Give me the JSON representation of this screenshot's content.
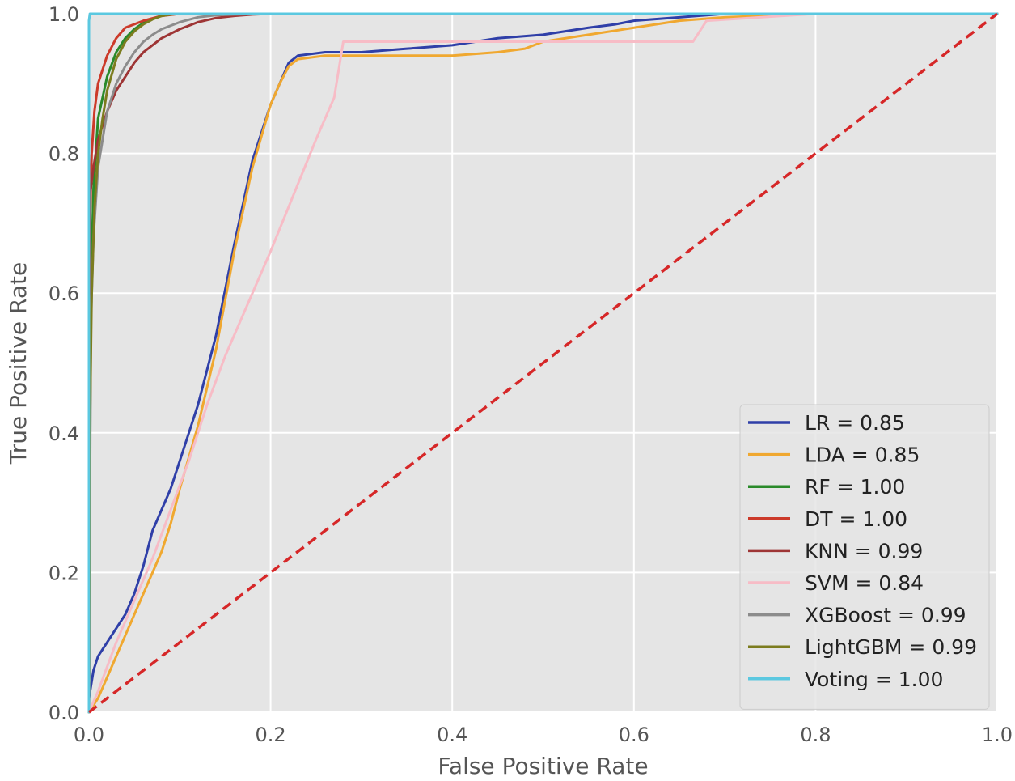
{
  "chart_data": {
    "type": "line",
    "title": "",
    "xlabel": "False Positive Rate",
    "ylabel": "True Positive Rate",
    "xlim": [
      0.0,
      1.0
    ],
    "ylim": [
      0.0,
      1.0
    ],
    "xticks": [
      0.0,
      0.2,
      0.4,
      0.6,
      0.8,
      1.0
    ],
    "yticks": [
      0.0,
      0.2,
      0.4,
      0.6,
      0.8,
      1.0
    ],
    "xtick_labels": [
      "0.0",
      "0.2",
      "0.4",
      "0.6",
      "0.8",
      "1.0"
    ],
    "ytick_labels": [
      "0.0",
      "0.2",
      "0.4",
      "0.6",
      "0.8",
      "1.0"
    ],
    "grid": true,
    "legend_position": "bottom-right",
    "colors": {
      "background": "#e5e5e5",
      "grid": "#ffffff",
      "diagonal": "#d62728"
    },
    "series": [
      {
        "name": "LR",
        "legend_label": "LR = 0.85",
        "auc": 0.85,
        "color": "#2f3fa8",
        "x": [
          0.0,
          0.005,
          0.01,
          0.02,
          0.03,
          0.04,
          0.05,
          0.06,
          0.07,
          0.08,
          0.09,
          0.1,
          0.12,
          0.14,
          0.16,
          0.18,
          0.2,
          0.21,
          0.22,
          0.23,
          0.26,
          0.3,
          0.35,
          0.4,
          0.45,
          0.5,
          0.55,
          0.58,
          0.6,
          0.65,
          0.7,
          0.8,
          0.9,
          1.0
        ],
        "y": [
          0.02,
          0.06,
          0.08,
          0.1,
          0.12,
          0.14,
          0.17,
          0.21,
          0.26,
          0.29,
          0.32,
          0.36,
          0.44,
          0.54,
          0.67,
          0.79,
          0.87,
          0.9,
          0.93,
          0.94,
          0.945,
          0.945,
          0.95,
          0.955,
          0.965,
          0.97,
          0.98,
          0.985,
          0.99,
          0.995,
          1.0,
          1.0,
          1.0,
          1.0
        ]
      },
      {
        "name": "LDA",
        "legend_label": "LDA = 0.85",
        "auc": 0.85,
        "color": "#f0a830",
        "x": [
          0.0,
          0.01,
          0.02,
          0.03,
          0.04,
          0.05,
          0.06,
          0.07,
          0.08,
          0.09,
          0.1,
          0.12,
          0.14,
          0.16,
          0.18,
          0.2,
          0.21,
          0.22,
          0.23,
          0.26,
          0.3,
          0.35,
          0.4,
          0.45,
          0.48,
          0.5,
          0.55,
          0.6,
          0.65,
          0.7,
          0.8,
          0.9,
          1.0
        ],
        "y": [
          0.0,
          0.02,
          0.05,
          0.08,
          0.11,
          0.14,
          0.17,
          0.2,
          0.23,
          0.27,
          0.32,
          0.41,
          0.52,
          0.66,
          0.78,
          0.87,
          0.9,
          0.925,
          0.935,
          0.94,
          0.94,
          0.94,
          0.94,
          0.945,
          0.95,
          0.96,
          0.97,
          0.98,
          0.99,
          0.995,
          1.0,
          1.0,
          1.0
        ]
      },
      {
        "name": "RF",
        "legend_label": "RF = 1.00",
        "auc": 1.0,
        "color": "#2a8a2a",
        "x": [
          0.0,
          0.002,
          0.005,
          0.01,
          0.02,
          0.03,
          0.04,
          0.05,
          0.06,
          0.07,
          0.08,
          0.09,
          0.1,
          0.2,
          0.5,
          1.0
        ],
        "y": [
          0.0,
          0.6,
          0.75,
          0.85,
          0.91,
          0.945,
          0.965,
          0.978,
          0.987,
          0.993,
          0.997,
          0.999,
          1.0,
          1.0,
          1.0,
          1.0
        ]
      },
      {
        "name": "DT",
        "legend_label": "DT = 1.00",
        "auc": 1.0,
        "color": "#cc3a2a",
        "x": [
          0.0,
          0.001,
          0.003,
          0.006,
          0.01,
          0.02,
          0.03,
          0.04,
          0.06,
          0.08,
          0.1,
          0.2,
          1.0
        ],
        "y": [
          0.0,
          0.7,
          0.8,
          0.86,
          0.9,
          0.94,
          0.965,
          0.98,
          0.99,
          0.997,
          1.0,
          1.0,
          1.0
        ]
      },
      {
        "name": "KNN",
        "legend_label": "KNN = 0.99",
        "auc": 0.99,
        "color": "#9e3535",
        "x": [
          0.0,
          0.001,
          0.005,
          0.01,
          0.02,
          0.03,
          0.04,
          0.05,
          0.06,
          0.08,
          0.1,
          0.12,
          0.14,
          0.16,
          0.18,
          0.2,
          0.5,
          1.0
        ],
        "y": [
          0.0,
          0.74,
          0.78,
          0.82,
          0.86,
          0.89,
          0.91,
          0.93,
          0.945,
          0.965,
          0.978,
          0.988,
          0.994,
          0.997,
          0.999,
          1.0,
          1.0,
          1.0
        ]
      },
      {
        "name": "SVM",
        "legend_label": "SVM = 0.84",
        "auc": 0.84,
        "color": "#f7bcc6",
        "x": [
          0.0,
          0.01,
          0.03,
          0.05,
          0.07,
          0.09,
          0.11,
          0.13,
          0.15,
          0.2,
          0.25,
          0.27,
          0.28,
          0.35,
          0.5,
          0.6,
          0.65,
          0.665,
          0.67,
          0.68,
          0.8,
          0.9,
          1.0
        ],
        "y": [
          0.0,
          0.03,
          0.1,
          0.16,
          0.22,
          0.29,
          0.36,
          0.44,
          0.51,
          0.66,
          0.82,
          0.88,
          0.96,
          0.96,
          0.96,
          0.96,
          0.96,
          0.96,
          0.97,
          0.99,
          1.0,
          1.0,
          1.0
        ]
      },
      {
        "name": "XGBoost",
        "legend_label": "XGBoost = 0.99",
        "auc": 0.99,
        "color": "#8c8c8c",
        "x": [
          0.0,
          0.002,
          0.005,
          0.01,
          0.02,
          0.03,
          0.04,
          0.05,
          0.06,
          0.07,
          0.08,
          0.1,
          0.12,
          0.14,
          0.16,
          0.2,
          0.5,
          1.0
        ],
        "y": [
          0.0,
          0.55,
          0.68,
          0.78,
          0.86,
          0.9,
          0.925,
          0.945,
          0.96,
          0.97,
          0.978,
          0.988,
          0.995,
          0.998,
          0.999,
          1.0,
          1.0,
          1.0
        ]
      },
      {
        "name": "LightGBM",
        "legend_label": "LightGBM = 0.99",
        "auc": 0.99,
        "color": "#7c7c1e",
        "x": [
          0.0,
          0.001,
          0.003,
          0.006,
          0.01,
          0.015,
          0.02,
          0.03,
          0.04,
          0.05,
          0.06,
          0.07,
          0.08,
          0.09,
          0.1,
          0.2,
          0.5,
          1.0
        ],
        "y": [
          0.0,
          0.4,
          0.6,
          0.72,
          0.8,
          0.85,
          0.89,
          0.935,
          0.96,
          0.975,
          0.985,
          0.992,
          0.997,
          0.999,
          1.0,
          1.0,
          1.0,
          1.0
        ]
      },
      {
        "name": "Voting",
        "legend_label": "Voting = 1.00",
        "auc": 1.0,
        "color": "#5bc8e0",
        "x": [
          0.0,
          0.0,
          0.001,
          1.0
        ],
        "y": [
          0.0,
          0.99,
          1.0,
          1.0
        ]
      }
    ],
    "reference_line": {
      "x": [
        0.0,
        1.0
      ],
      "y": [
        0.0,
        1.0
      ],
      "style": "dashed"
    }
  }
}
